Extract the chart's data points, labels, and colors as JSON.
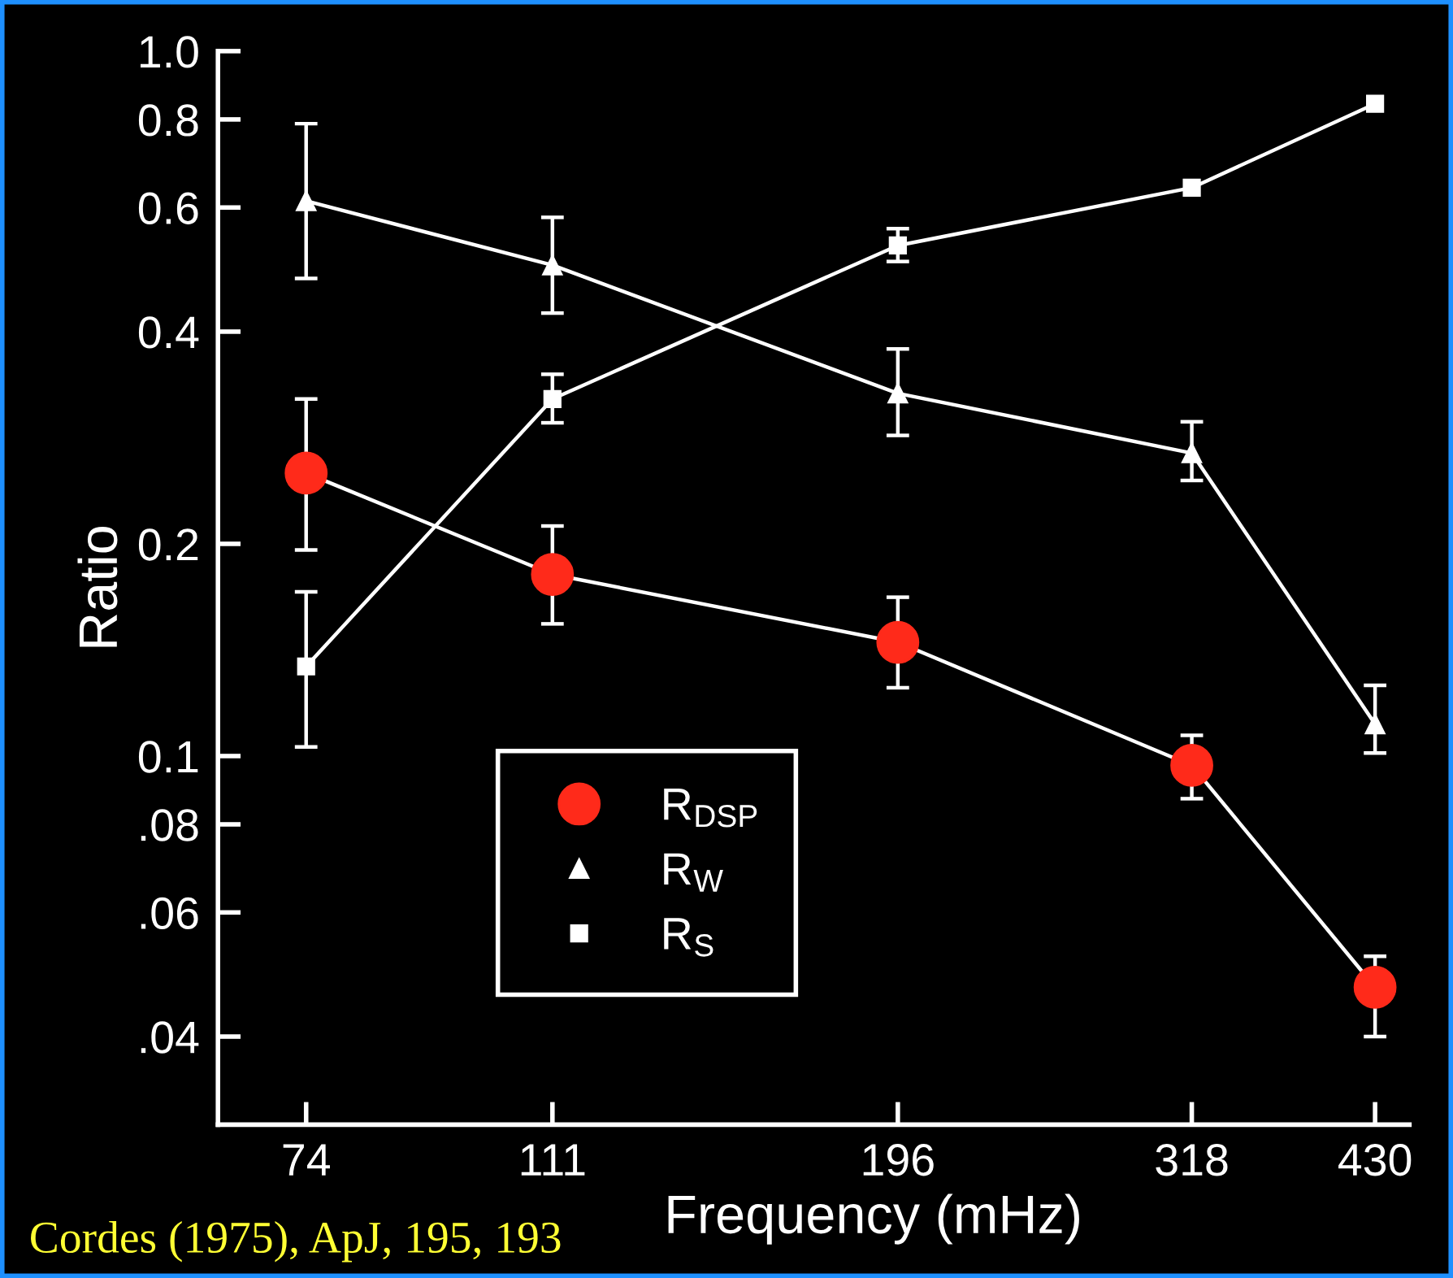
{
  "chart_data": {
    "type": "line",
    "xlabel": "Frequency (mHz)",
    "ylabel": "Ratio",
    "log": "xy",
    "x": [
      74,
      111,
      196,
      318,
      430
    ],
    "xlim": [
      64,
      455
    ],
    "xticks": [
      74,
      111,
      196,
      318,
      430
    ],
    "ylim": [
      0.03,
      1.0
    ],
    "yticks": [
      {
        "value": 1.0,
        "label": "1.0"
      },
      {
        "value": 0.8,
        "label": "0.8"
      },
      {
        "value": 0.6,
        "label": "0.6"
      },
      {
        "value": 0.4,
        "label": "0.4"
      },
      {
        "value": 0.2,
        "label": "0.2"
      },
      {
        "value": 0.1,
        "label": "0.1"
      },
      {
        "value": 0.08,
        "label": ".08"
      },
      {
        "value": 0.06,
        "label": ".06"
      },
      {
        "value": 0.04,
        "label": ".04"
      }
    ],
    "series": [
      {
        "name": "R$_{DSP}$",
        "color": "#ff2a1a",
        "marker": "circle",
        "values": [
          0.252,
          0.181,
          0.145,
          0.097,
          0.047
        ],
        "errors": [
          [
            0.196,
            0.321
          ],
          [
            0.154,
            0.212
          ],
          [
            0.125,
            0.168
          ],
          [
            0.087,
            0.107
          ],
          [
            0.04,
            0.052
          ]
        ]
      },
      {
        "name": "R$_{W}$",
        "color": "#ffffff",
        "marker": "triangle",
        "values": [
          0.613,
          0.497,
          0.327,
          0.269,
          0.111
        ],
        "errors": [
          [
            0.476,
            0.789
          ],
          [
            0.425,
            0.581
          ],
          [
            0.285,
            0.378
          ],
          [
            0.246,
            0.298
          ],
          [
            0.101,
            0.126
          ]
        ]
      },
      {
        "name": "R$_{S}$",
        "color": "#ffffff",
        "marker": "square",
        "values": [
          0.134,
          0.321,
          0.53,
          0.64,
          0.842
        ],
        "errors": [
          [
            0.103,
            0.171
          ],
          [
            0.297,
            0.348
          ],
          [
            0.503,
            0.56
          ],
          null,
          null
        ]
      }
    ],
    "legend": "bottom",
    "grid": false,
    "annotations": [
      "Cordes (1975), ApJ, 195, 193"
    ]
  }
}
